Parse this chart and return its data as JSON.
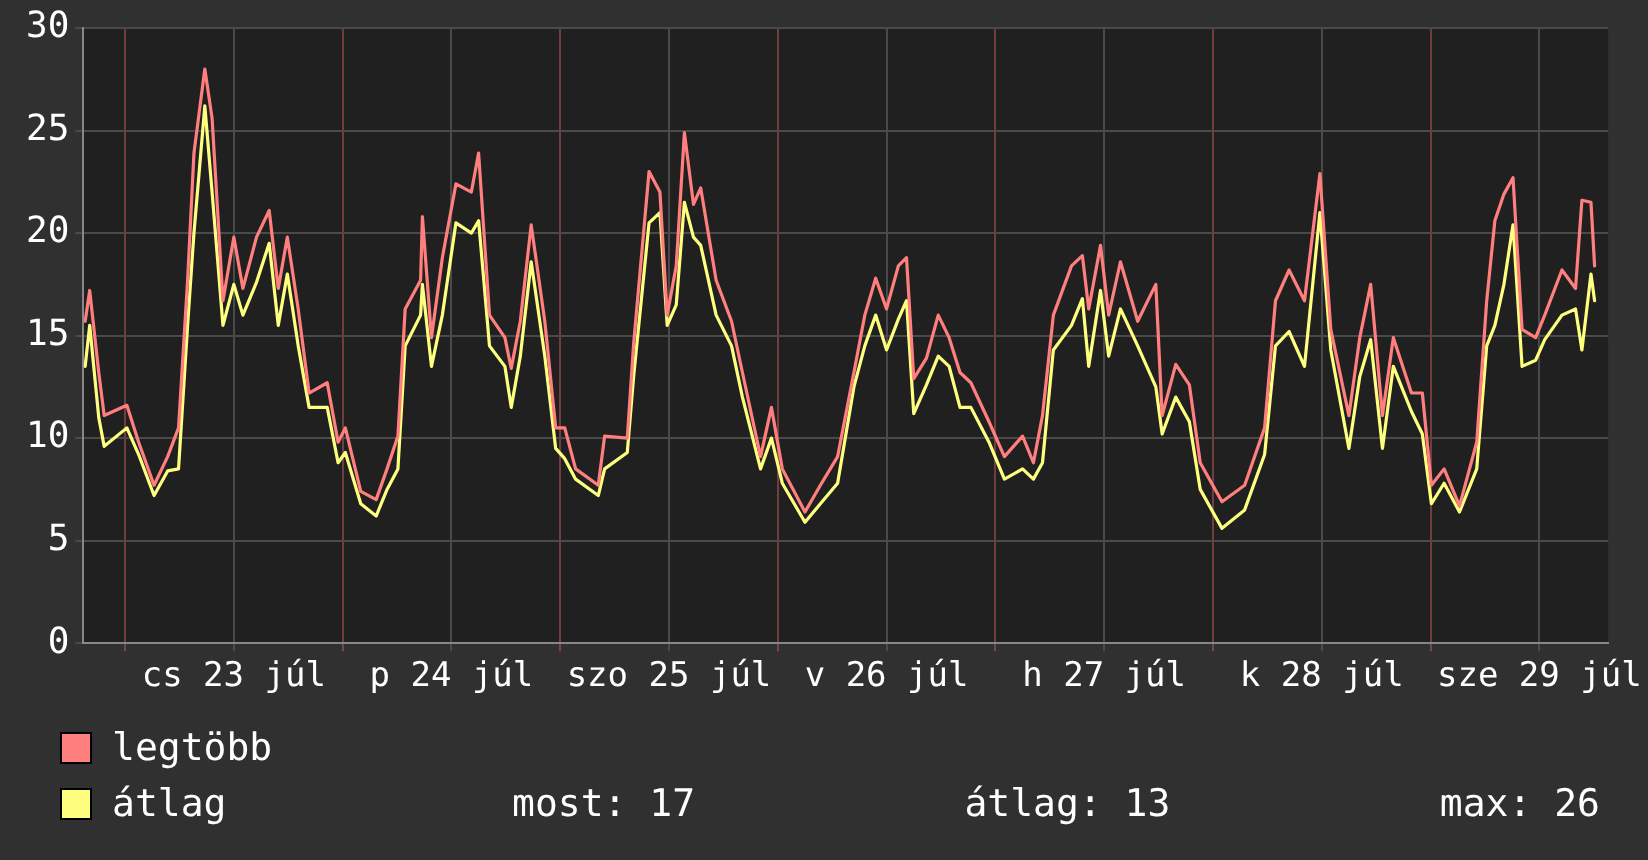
{
  "chart_data": {
    "type": "line",
    "xlim": [
      "--07-22T19:24",
      "--07-29T19:36"
    ],
    "xticks": [
      {
        "value": "--07-23T00:00",
        "label": null
      },
      {
        "value": "--07-23T12:00",
        "label": "cs 23 júl"
      },
      {
        "value": "--07-24T00:00",
        "label": null
      },
      {
        "value": "--07-24T12:00",
        "label": "p 24 júl"
      },
      {
        "value": "--07-25T00:00",
        "label": null
      },
      {
        "value": "--07-25T12:00",
        "label": "szo 25 júl"
      },
      {
        "value": "--07-26T00:00",
        "label": null
      },
      {
        "value": "--07-26T12:00",
        "label": "v 26 júl"
      },
      {
        "value": "--07-27T00:00",
        "label": null
      },
      {
        "value": "--07-27T12:00",
        "label": "h 27 júl"
      },
      {
        "value": "--07-28T00:00",
        "label": null
      },
      {
        "value": "--07-28T12:00",
        "label": "k 28 júl"
      },
      {
        "value": "--07-29T00:00",
        "label": null
      },
      {
        "value": "--07-29T12:00",
        "label": "sze 29 júl"
      }
    ],
    "ylim": [
      0,
      30
    ],
    "yticks": [
      0,
      5,
      10,
      15,
      20,
      25,
      30
    ],
    "grid": true,
    "legend": "bottom left",
    "marker": "none",
    "line_style": "solid",
    "annotations": [
      "most: 17",
      "átlag: 13",
      "max: 26"
    ],
    "x": [
      "--07-22T19:36",
      "--07-22T20:06",
      "--07-22T21:06",
      "--07-22T21:42",
      "--07-23T00:12",
      "--07-23T01:30",
      "--07-23T03:12",
      "--07-23T04:42",
      "--07-23T05:54",
      "--07-23T06:54",
      "--07-23T07:36",
      "--07-23T08:48",
      "--07-23T09:36",
      "--07-23T10:48",
      "--07-23T12:00",
      "--07-23T13:00",
      "--07-23T14:30",
      "--07-23T15:54",
      "--07-23T16:54",
      "--07-23T17:54",
      "--07-23T19:06",
      "--07-23T20:18",
      "--07-23T22:18",
      "--07-23T23:30",
      "--07-24T00:18",
      "--07-24T02:00",
      "--07-24T03:42",
      "--07-24T04:54",
      "--07-24T06:06",
      "--07-24T06:54",
      "--07-24T08:36",
      "--07-24T08:48",
      "--07-24T09:48",
      "--07-24T11:00",
      "--07-24T12:30",
      "--07-24T14:12",
      "--07-24T15:00",
      "--07-24T16:12",
      "--07-24T17:54",
      "--07-24T18:36",
      "--07-24T19:36",
      "--07-24T20:48",
      "--07-24T22:18",
      "--07-24T23:30",
      "--07-25T00:30",
      "--07-25T01:42",
      "--07-25T04:12",
      "--07-25T04:54",
      "--07-25T07:24",
      "--07-25T08:06",
      "--07-25T09:48",
      "--07-25T11:00",
      "--07-25T11:48",
      "--07-25T12:48",
      "--07-25T13:42",
      "--07-25T14:42",
      "--07-25T15:30",
      "--07-25T17:12",
      "--07-25T18:54",
      "--07-25T20:06",
      "--07-25T22:06",
      "--07-25T23:18",
      "--07-26T00:30",
      "--07-26T03:00",
      "--07-26T04:42",
      "--07-26T06:36",
      "--07-26T08:24",
      "--07-26T09:36",
      "--07-26T10:48",
      "--07-26T12:00",
      "--07-26T13:18",
      "--07-26T14:12",
      "--07-26T15:00",
      "--07-26T16:24",
      "--07-26T17:42",
      "--07-26T18:54",
      "--07-26T20:06",
      "--07-26T21:18",
      "--07-26T23:18",
      "--07-27T01:00",
      "--07-27T03:00",
      "--07-27T04:12",
      "--07-27T05:12",
      "--07-27T06:24",
      "--07-27T08:24",
      "--07-27T09:36",
      "--07-27T10:18",
      "--07-27T11:36",
      "--07-27T12:30",
      "--07-27T13:48",
      "--07-27T15:42",
      "--07-27T17:42",
      "--07-27T18:24",
      "--07-27T19:54",
      "--07-27T21:24",
      "--07-27T22:36",
      "--07-28T01:00",
      "--07-28T03:30",
      "--07-28T05:42",
      "--07-28T06:54",
      "--07-28T08:24",
      "--07-28T10:06",
      "--07-28T11:48",
      "--07-28T13:00",
      "--07-28T15:00",
      "--07-28T16:12",
      "--07-28T17:24",
      "--07-28T18:42",
      "--07-28T19:54",
      "--07-28T21:54",
      "--07-28T23:06",
      "--07-29T00:06",
      "--07-29T01:30",
      "--07-29T03:12",
      "--07-29T05:06",
      "--07-29T06:12",
      "--07-29T07:06",
      "--07-29T08:06",
      "--07-29T09:06",
      "--07-29T10:06",
      "--07-29T11:36",
      "--07-29T12:36",
      "--07-29T14:30",
      "--07-29T16:00",
      "--07-29T16:42",
      "--07-29T17:42",
      "--07-29T18:06"
    ],
    "series": [
      {
        "name": "legtöbb",
        "color": "#ff7f7f",
        "values": [
          15.7,
          17.2,
          13.2,
          11.1,
          11.6,
          9.8,
          7.7,
          9.1,
          10.5,
          17.7,
          23.9,
          28.0,
          25.6,
          16.7,
          19.8,
          17.3,
          19.8,
          21.1,
          17.3,
          19.8,
          16.3,
          12.2,
          12.7,
          9.8,
          10.5,
          7.4,
          7.0,
          8.5,
          10.1,
          16.3,
          17.7,
          20.8,
          14.9,
          18.8,
          22.4,
          22.0,
          23.9,
          16.0,
          14.9,
          13.4,
          15.7,
          20.4,
          15.7,
          10.5,
          10.5,
          8.5,
          7.7,
          10.1,
          10.0,
          14.6,
          23.0,
          22.0,
          16.0,
          18.4,
          24.9,
          21.4,
          22.2,
          17.7,
          15.7,
          13.2,
          9.1,
          11.5,
          8.5,
          6.4,
          7.7,
          9.1,
          13.2,
          16.0,
          17.8,
          16.3,
          18.4,
          18.8,
          12.9,
          13.9,
          16.0,
          14.9,
          13.2,
          12.7,
          10.8,
          9.1,
          10.1,
          8.8,
          11.1,
          16.0,
          18.4,
          18.9,
          16.3,
          19.4,
          16.0,
          18.6,
          15.7,
          17.5,
          11.1,
          13.6,
          12.6,
          8.8,
          6.9,
          7.7,
          10.5,
          16.7,
          18.2,
          16.7,
          22.9,
          15.3,
          11.1,
          14.9,
          17.5,
          11.1,
          14.9,
          12.2,
          12.2,
          7.7,
          8.5,
          6.7,
          9.8,
          16.7,
          20.6,
          21.9,
          22.7,
          15.3,
          14.9,
          16.0,
          18.2,
          17.3,
          21.6,
          21.5,
          18.4
        ]
      },
      {
        "name": "átlag",
        "color": "#ffff7f",
        "values": [
          13.5,
          15.5,
          11,
          9.6,
          10.5,
          9.2,
          7.2,
          8.4,
          8.5,
          15.5,
          20,
          26.2,
          22,
          15.5,
          17.5,
          16,
          17.6,
          19.5,
          15.5,
          18,
          14.5,
          11.5,
          11.5,
          8.8,
          9.3,
          6.8,
          6.2,
          7.5,
          8.5,
          14.5,
          16,
          17.5,
          13.5,
          16,
          20.5,
          20,
          20.6,
          14.5,
          13.5,
          11.5,
          14,
          18.6,
          14,
          9.5,
          9.0,
          8,
          7.2,
          8.5,
          9.3,
          13,
          20.5,
          21,
          15.5,
          16.5,
          21.5,
          19.8,
          19.4,
          16,
          14.5,
          12,
          8.5,
          10,
          7.8,
          5.9,
          6.8,
          7.8,
          12.5,
          14.5,
          16,
          14.3,
          15.8,
          16.7,
          11.2,
          12.6,
          14,
          13.5,
          11.5,
          11.5,
          9.8,
          8,
          8.5,
          8,
          8.8,
          14.3,
          15.5,
          16.8,
          13.5,
          17.2,
          14,
          16.3,
          14.5,
          12.5,
          10.2,
          12,
          10.8,
          7.5,
          5.6,
          6.5,
          9.2,
          14.5,
          15.2,
          13.5,
          21,
          14.3,
          9.5,
          13,
          14.8,
          9.5,
          13.5,
          11.3,
          10.2,
          6.8,
          7.8,
          6.4,
          8.5,
          14.5,
          15.5,
          17.5,
          20.4,
          13.5,
          13.8,
          14.8,
          16,
          16.3,
          14.3,
          18,
          16.7
        ]
      }
    ]
  }
}
